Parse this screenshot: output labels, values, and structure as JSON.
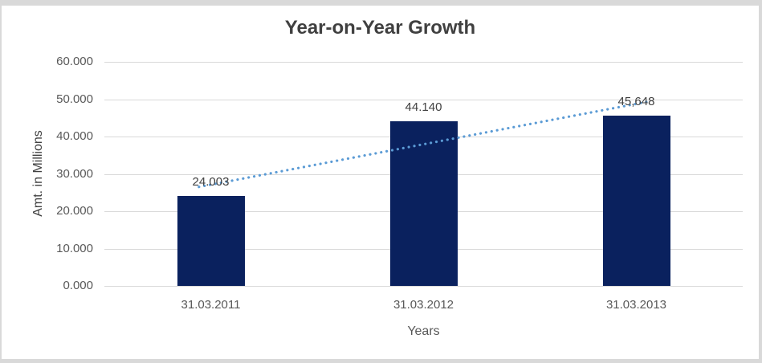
{
  "chart_data": {
    "type": "bar",
    "title": "Year-on-Year Growth",
    "xlabel": "Years",
    "ylabel": "Amt. in Millions",
    "categories": [
      "31.03.2011",
      "31.03.2012",
      "31.03.2013"
    ],
    "values": [
      24.003,
      44.14,
      45.648
    ],
    "value_labels": [
      "24.003",
      "44.140",
      "45,648"
    ],
    "ylim": [
      0,
      60
    ],
    "ytick_values": [
      0,
      10,
      20,
      30,
      40,
      50,
      60
    ],
    "ytick_labels": [
      "0.000",
      "10.000",
      "20.000",
      "30.000",
      "40.000",
      "50.000",
      "60.000"
    ],
    "grid": "horizontal",
    "legend": "none",
    "colors": {
      "bar": "#0a215e",
      "trendline": "#5b9bd5",
      "gridline": "#d9d9d9",
      "axis_text": "#595959",
      "title_text": "#404040",
      "background": "#ffffff",
      "frame_surround": "#d9d9d9"
    },
    "trendline": {
      "type": "linear",
      "style": "dotted",
      "color": "#5b9bd5"
    }
  }
}
